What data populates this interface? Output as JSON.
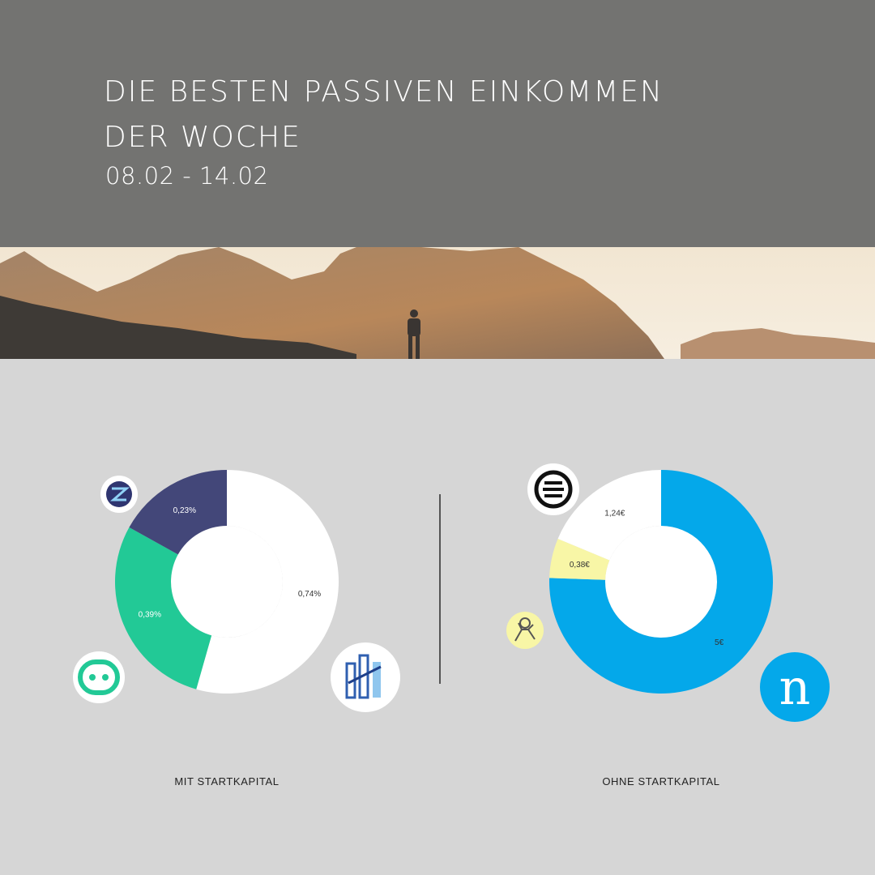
{
  "header": {
    "title_line1": "DIE BESTEN PASSIVEN EINKOMMEN",
    "title_line2": "DER WOCHE",
    "date_range": "08.02 - 14.02"
  },
  "colors": {
    "header_bg": "#737371",
    "page_bg": "#d6d6d6",
    "white": "#ffffff",
    "navy": "#434779",
    "green": "#22c996",
    "blue": "#04a8ea",
    "yellow": "#f8f6a6"
  },
  "chart_data": [
    {
      "type": "pie",
      "donut": true,
      "caption": "MIT STARTKAPITAL",
      "slices": [
        {
          "value": 0.74,
          "label": "0,74%",
          "color": "#ffffff",
          "label_color": "#333333",
          "icon": "building-logo-icon"
        },
        {
          "value": 0.39,
          "label": "0,39%",
          "color": "#22c996",
          "label_color": "#ffffff",
          "icon": "robot-face-logo-icon"
        },
        {
          "value": 0.23,
          "label": "0,23%",
          "color": "#434779",
          "label_color": "#ffffff",
          "icon": "crypto-wallet-logo-icon"
        }
      ]
    },
    {
      "type": "pie",
      "donut": true,
      "caption": "OHNE STARTKAPITAL",
      "slices": [
        {
          "value": 5,
          "label": "5€",
          "color": "#04a8ea",
          "label_color": "#333333",
          "icon": "n-letter-logo-icon"
        },
        {
          "value": 0.38,
          "label": "0,38€",
          "color": "#f8f6a6",
          "label_color": "#333333",
          "icon": "running-character-logo-icon"
        },
        {
          "value": 1.24,
          "label": "1,24€",
          "color": "#ffffff",
          "label_color": "#333333",
          "icon": "e-circle-logo-icon"
        }
      ]
    }
  ]
}
